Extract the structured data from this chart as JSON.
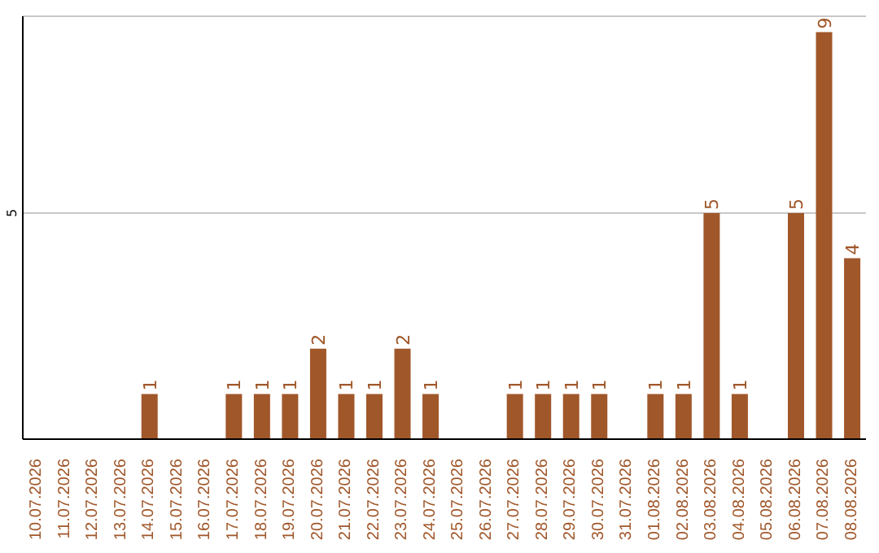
{
  "chart_data": {
    "type": "bar",
    "categories": [
      "10.07.2026",
      "11.07.2026",
      "12.07.2026",
      "13.07.2026",
      "14.07.2026",
      "15.07.2026",
      "16.07.2026",
      "17.07.2026",
      "18.07.2026",
      "19.07.2026",
      "20.07.2026",
      "21.07.2026",
      "22.07.2026",
      "23.07.2026",
      "24.07.2026",
      "25.07.2026",
      "26.07.2026",
      "27.07.2026",
      "28.07.2026",
      "29.07.2026",
      "30.07.2026",
      "31.07.2026",
      "01.08.2026",
      "02.08.2026",
      "03.08.2026",
      "04.08.2026",
      "05.08.2026",
      "06.08.2026",
      "07.08.2026",
      "08.08.2026"
    ],
    "values": [
      0,
      0,
      0,
      0,
      1,
      0,
      0,
      1,
      1,
      1,
      2,
      1,
      1,
      2,
      1,
      0,
      0,
      1,
      1,
      1,
      1,
      0,
      1,
      1,
      5,
      1,
      0,
      5,
      9,
      4
    ],
    "value_labels": [
      null,
      null,
      null,
      null,
      "1",
      null,
      null,
      "1",
      "1",
      "1",
      "2",
      "1",
      "1",
      "2",
      "1",
      null,
      null,
      "1",
      "1",
      "1",
      "1",
      null,
      "1",
      "1",
      "5",
      "1",
      null,
      "5",
      "9",
      "4"
    ],
    "color": "#a0572a",
    "ylim": [
      0,
      9.35
    ],
    "yticks": [
      5
    ],
    "grid": "y"
  }
}
